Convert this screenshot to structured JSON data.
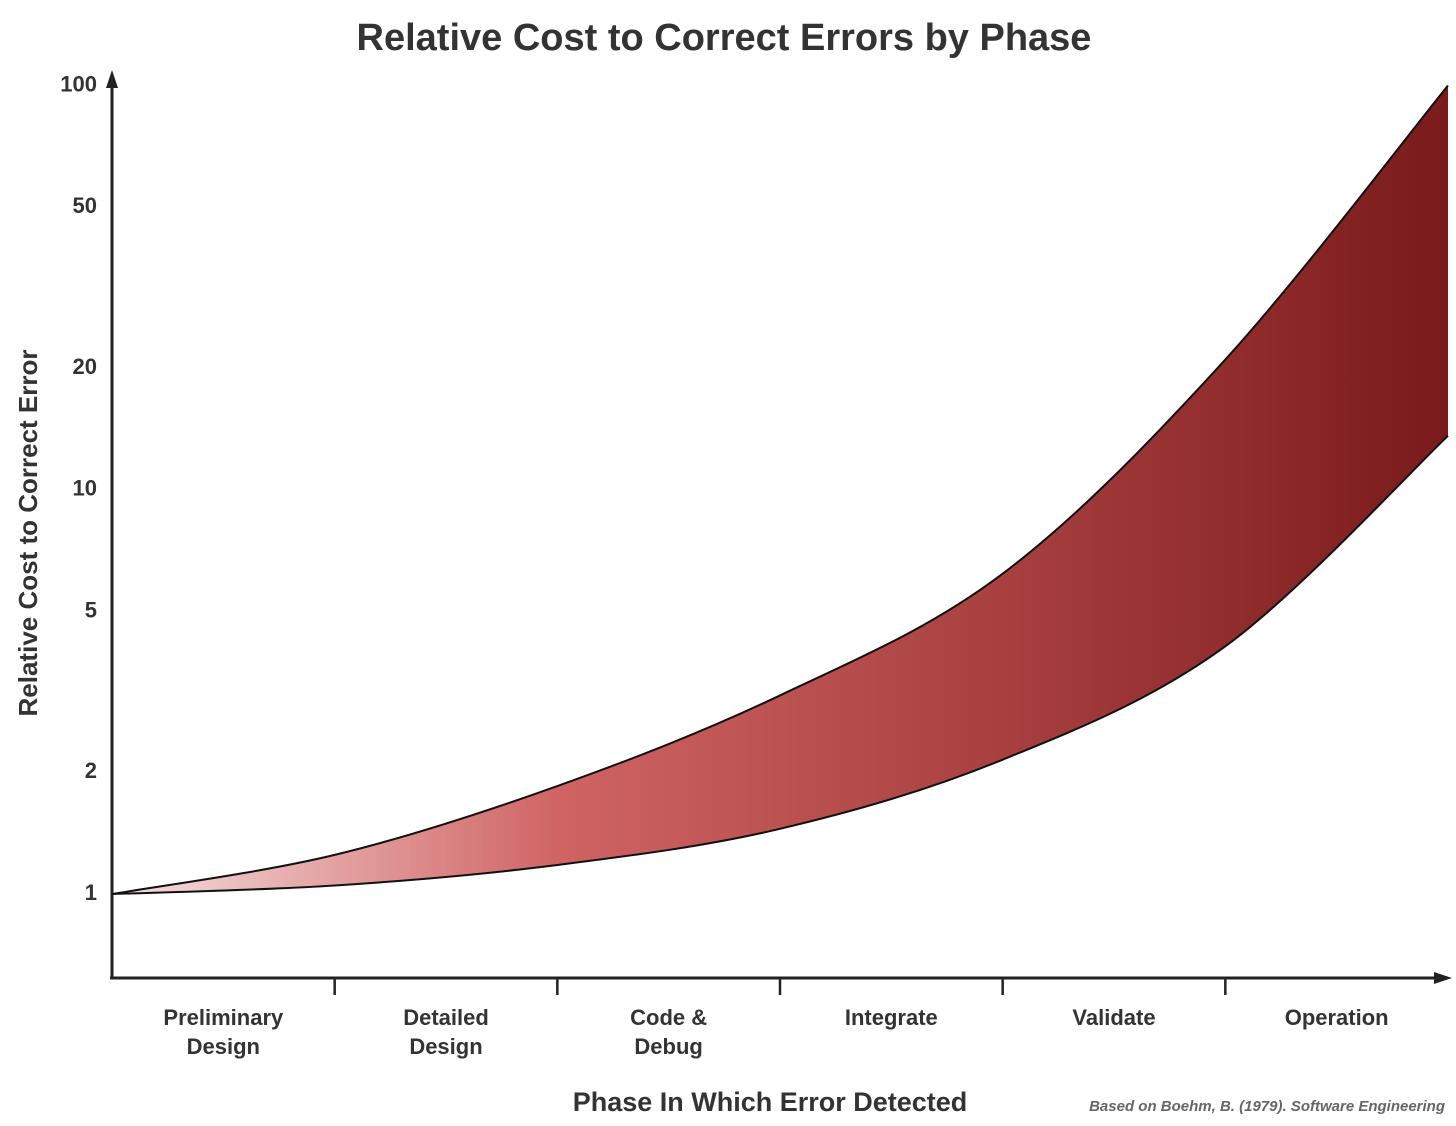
{
  "chart_data": {
    "type": "band",
    "title": "Relative Cost to Correct Errors by Phase",
    "y_label": "Relative Cost to Correct Error",
    "x_label": "Phase In Which Error Detected",
    "source": "Based on Boehm, B. (1979). Software Engineering",
    "categories": [
      "Preliminary Design",
      "Detailed Design",
      "Code & Debug",
      "Integrate",
      "Validate",
      "Operation"
    ],
    "x": [
      0,
      1,
      2,
      3,
      4,
      5,
      6
    ],
    "xlim": [
      0,
      6
    ],
    "xticks": [
      1,
      2,
      3,
      4,
      5
    ],
    "series": [
      {
        "values": [
          1,
          1.25,
          1.85,
          3.1,
          6.2,
          21,
          100
        ]
      },
      {
        "values": [
          1,
          1.05,
          1.18,
          1.45,
          2.15,
          4.1,
          13.6
        ]
      }
    ],
    "colors": [
      "#f6e0e0",
      "#d06464",
      "#a84040",
      "#7a1a1a"
    ],
    "ylim": [
      0.62,
      108
    ],
    "yticks": [
      1,
      2,
      5,
      10,
      20,
      50,
      100
    ],
    "log_scale": true
  }
}
